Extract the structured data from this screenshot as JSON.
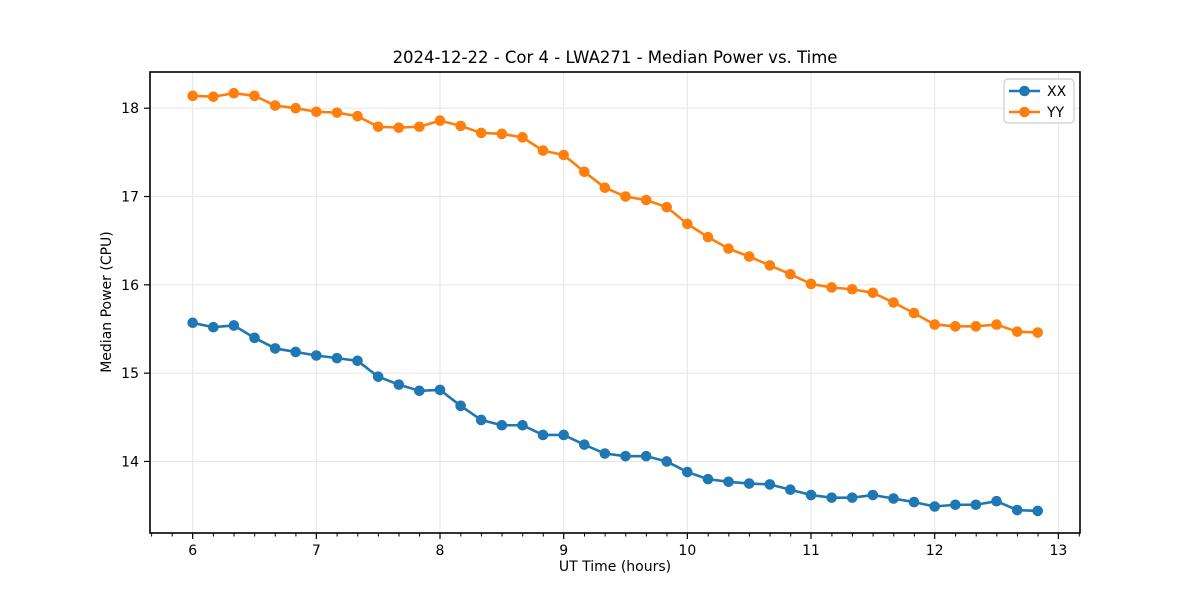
{
  "figure": {
    "title": "2024-12-22 - Cor 4 - LWA271 - Median Power vs. Time",
    "xlabel": "UT Time (hours)",
    "ylabel": "Median Power (CPU)"
  },
  "legend": {
    "items": [
      {
        "label": "XX",
        "color": "#1f77b4"
      },
      {
        "label": "YY",
        "color": "#ff7f0e"
      }
    ]
  },
  "chart_data": {
    "type": "line",
    "title": "2024-12-22 - Cor 4 - LWA271 - Median Power vs. Time",
    "xlabel": "UT Time (hours)",
    "ylabel": "Median Power (CPU)",
    "xlim": [
      5.655,
      13.175
    ],
    "ylim": [
      13.19,
      18.41
    ],
    "x_ticks": [
      6,
      7,
      8,
      9,
      10,
      11,
      12,
      13
    ],
    "y_ticks": [
      14,
      15,
      16,
      17,
      18
    ],
    "x_minor_step": 0.1667,
    "grid": true,
    "grid_color": "#e6e6e6",
    "legend_position": "upper right",
    "marker": "o",
    "x": [
      6.0,
      6.167,
      6.333,
      6.5,
      6.667,
      6.833,
      7.0,
      7.167,
      7.333,
      7.5,
      7.667,
      7.833,
      8.0,
      8.167,
      8.333,
      8.5,
      8.667,
      8.833,
      9.0,
      9.167,
      9.333,
      9.5,
      9.667,
      9.833,
      10.0,
      10.167,
      10.333,
      10.5,
      10.667,
      10.833,
      11.0,
      11.167,
      11.333,
      11.5,
      11.667,
      11.833,
      12.0,
      12.167,
      12.333,
      12.5,
      12.667,
      12.833
    ],
    "series": [
      {
        "name": "XX",
        "color": "#1f77b4",
        "values": [
          15.57,
          15.52,
          15.54,
          15.4,
          15.28,
          15.24,
          15.2,
          15.17,
          15.14,
          14.96,
          14.87,
          14.8,
          14.81,
          14.63,
          14.47,
          14.41,
          14.41,
          14.3,
          14.3,
          14.19,
          14.09,
          14.06,
          14.06,
          14.0,
          13.88,
          13.8,
          13.77,
          13.75,
          13.74,
          13.68,
          13.62,
          13.59,
          13.59,
          13.62,
          13.58,
          13.54,
          13.49,
          13.51,
          13.51,
          13.55,
          13.45,
          13.44
        ]
      },
      {
        "name": "YY",
        "color": "#ff7f0e",
        "values": [
          18.14,
          18.13,
          18.17,
          18.14,
          18.03,
          18.0,
          17.96,
          17.95,
          17.91,
          17.79,
          17.78,
          17.79,
          17.86,
          17.8,
          17.72,
          17.71,
          17.67,
          17.52,
          17.47,
          17.28,
          17.1,
          17.0,
          16.96,
          16.88,
          16.69,
          16.54,
          16.41,
          16.32,
          16.22,
          16.12,
          16.01,
          15.97,
          15.95,
          15.91,
          15.8,
          15.68,
          15.55,
          15.53,
          15.53,
          15.55,
          15.47,
          15.46
        ]
      }
    ]
  }
}
